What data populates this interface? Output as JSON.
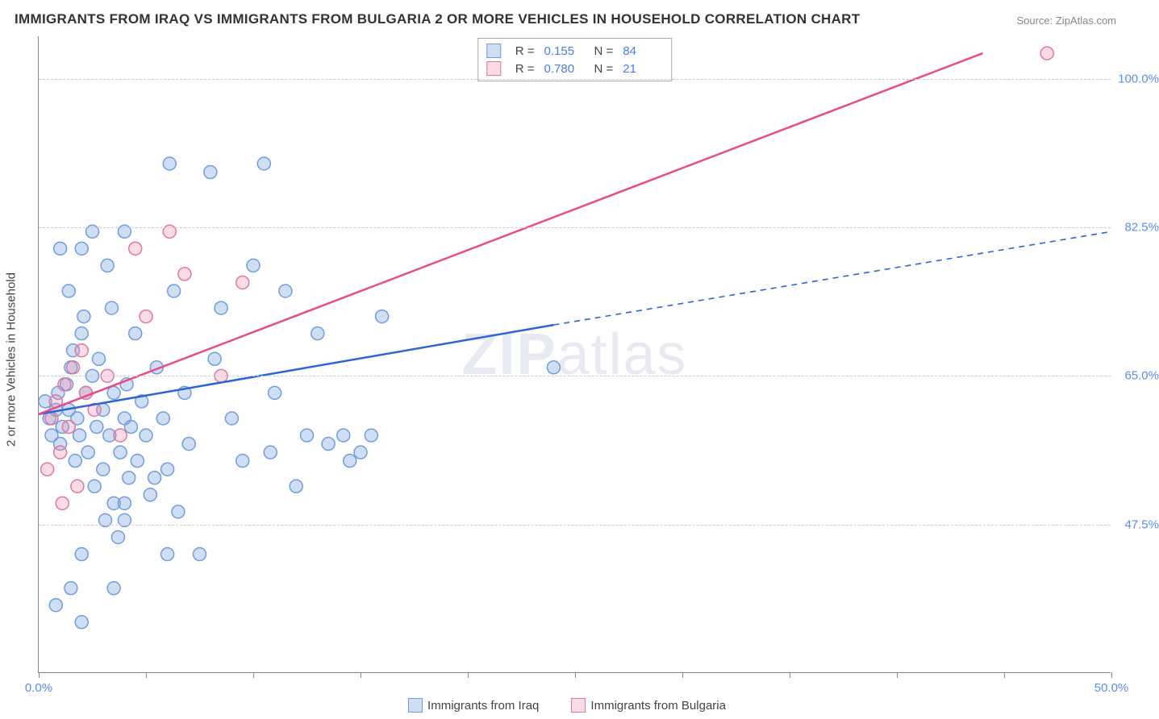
{
  "title": "IMMIGRANTS FROM IRAQ VS IMMIGRANTS FROM BULGARIA 2 OR MORE VEHICLES IN HOUSEHOLD CORRELATION CHART",
  "source": "Source: ZipAtlas.com",
  "ylabel": "2 or more Vehicles in Household",
  "watermark": "ZIPatlas",
  "chart": {
    "type": "scatter",
    "background_color": "#ffffff",
    "grid_color": "#cccccc",
    "axis_color": "#888888",
    "xlim": [
      0,
      50
    ],
    "ylim": [
      30,
      105
    ],
    "xticks": [
      0,
      5,
      10,
      15,
      20,
      25,
      30,
      35,
      40,
      45,
      50
    ],
    "xtick_labels": {
      "0": "0.0%",
      "50": "50.0%"
    },
    "yticks": [
      47.5,
      65.0,
      82.5,
      100.0
    ],
    "ytick_labels": [
      "47.5%",
      "65.0%",
      "82.5%",
      "100.0%"
    ],
    "title_fontsize": 17,
    "label_fontsize": 15,
    "tick_fontsize": 15,
    "tick_color": "#5b8def",
    "marker_radius": 8,
    "marker_stroke_width": 1.5,
    "line_width": 2.5
  },
  "series": [
    {
      "name": "Immigrants from Iraq",
      "color_fill": "rgba(120,160,220,0.35)",
      "color_stroke": "#6f9de0",
      "line_color": "#2e63d6",
      "R": "0.155",
      "N": "84",
      "regression": {
        "x1": 0,
        "y1": 60.5,
        "x2": 24,
        "y2": 71.0,
        "x2_dash": 50,
        "y2_dash": 82.0
      },
      "points": [
        [
          0.5,
          60
        ],
        [
          0.3,
          62
        ],
        [
          0.6,
          58
        ],
        [
          0.8,
          61
        ],
        [
          0.9,
          63
        ],
        [
          1.0,
          57
        ],
        [
          1.1,
          59
        ],
        [
          1.3,
          64
        ],
        [
          1.4,
          61
        ],
        [
          1.5,
          66
        ],
        [
          1.6,
          68
        ],
        [
          1.7,
          55
        ],
        [
          1.8,
          60
        ],
        [
          1.9,
          58
        ],
        [
          2.0,
          70
        ],
        [
          2.0,
          80
        ],
        [
          2.1,
          72
        ],
        [
          2.2,
          63
        ],
        [
          2.3,
          56
        ],
        [
          2.5,
          65
        ],
        [
          2.6,
          52
        ],
        [
          2.7,
          59
        ],
        [
          2.8,
          67
        ],
        [
          3.0,
          61
        ],
        [
          3.0,
          54
        ],
        [
          3.1,
          48
        ],
        [
          3.3,
          58
        ],
        [
          3.4,
          73
        ],
        [
          3.5,
          50
        ],
        [
          3.5,
          63
        ],
        [
          3.7,
          46
        ],
        [
          3.8,
          56
        ],
        [
          4.0,
          60
        ],
        [
          4.0,
          82
        ],
        [
          4.1,
          64
        ],
        [
          4.2,
          53
        ],
        [
          4.3,
          59
        ],
        [
          4.5,
          70
        ],
        [
          4.6,
          55
        ],
        [
          4.8,
          62
        ],
        [
          5.0,
          58
        ],
        [
          5.2,
          51
        ],
        [
          5.5,
          66
        ],
        [
          5.8,
          60
        ],
        [
          6.0,
          54
        ],
        [
          6.1,
          90
        ],
        [
          6.3,
          75
        ],
        [
          6.5,
          49
        ],
        [
          6.8,
          63
        ],
        [
          7.0,
          57
        ],
        [
          7.5,
          44
        ],
        [
          8.0,
          89
        ],
        [
          8.2,
          67
        ],
        [
          8.5,
          73
        ],
        [
          9.0,
          60
        ],
        [
          9.5,
          55
        ],
        [
          10.0,
          78
        ],
        [
          10.5,
          90
        ],
        [
          10.8,
          56
        ],
        [
          11.0,
          63
        ],
        [
          11.5,
          75
        ],
        [
          12.0,
          52
        ],
        [
          12.5,
          58
        ],
        [
          13.0,
          70
        ],
        [
          13.5,
          57
        ],
        [
          14.2,
          58
        ],
        [
          14.5,
          55
        ],
        [
          15.0,
          56
        ],
        [
          15.5,
          58
        ],
        [
          16.0,
          72
        ],
        [
          2.5,
          82
        ],
        [
          1.4,
          75
        ],
        [
          3.2,
          78
        ],
        [
          1.0,
          80
        ],
        [
          24.0,
          66
        ],
        [
          4.0,
          50
        ],
        [
          5.4,
          53
        ],
        [
          6.0,
          44
        ],
        [
          2.0,
          44
        ],
        [
          1.5,
          40
        ],
        [
          0.8,
          38
        ],
        [
          2.0,
          36
        ],
        [
          3.5,
          40
        ],
        [
          4.0,
          48
        ]
      ]
    },
    {
      "name": "Immigrants from Bulgaria",
      "color_fill": "rgba(235,140,170,0.30)",
      "color_stroke": "#e077a0",
      "line_color": "#e84c88",
      "R": "0.780",
      "N": "21",
      "regression": {
        "x1": 0,
        "y1": 60.5,
        "x2": 44,
        "y2": 103.0
      },
      "points": [
        [
          0.4,
          54
        ],
        [
          0.6,
          60
        ],
        [
          0.8,
          62
        ],
        [
          1.0,
          56
        ],
        [
          1.2,
          64
        ],
        [
          1.4,
          59
        ],
        [
          1.6,
          66
        ],
        [
          1.8,
          52
        ],
        [
          2.0,
          68
        ],
        [
          2.2,
          63
        ],
        [
          2.6,
          61
        ],
        [
          3.2,
          65
        ],
        [
          3.8,
          58
        ],
        [
          4.5,
          80
        ],
        [
          5.0,
          72
        ],
        [
          6.1,
          82
        ],
        [
          6.8,
          77
        ],
        [
          8.5,
          65
        ],
        [
          9.5,
          76
        ],
        [
          47.0,
          103
        ],
        [
          1.1,
          50
        ]
      ]
    }
  ],
  "legend_top": [
    {
      "swatch_fill": "rgba(120,160,220,0.35)",
      "swatch_stroke": "#6f9de0",
      "r_label": "R =",
      "r_val": "0.155",
      "n_label": "N =",
      "n_val": "84"
    },
    {
      "swatch_fill": "rgba(235,140,170,0.30)",
      "swatch_stroke": "#e077a0",
      "r_label": "R =",
      "r_val": "0.780",
      "n_label": "N =",
      "n_val": "21"
    }
  ],
  "legend_bottom": [
    {
      "swatch_fill": "rgba(120,160,220,0.35)",
      "swatch_stroke": "#6f9de0",
      "label": "Immigrants from Iraq"
    },
    {
      "swatch_fill": "rgba(235,140,170,0.30)",
      "swatch_stroke": "#e077a0",
      "label": "Immigrants from Bulgaria"
    }
  ]
}
